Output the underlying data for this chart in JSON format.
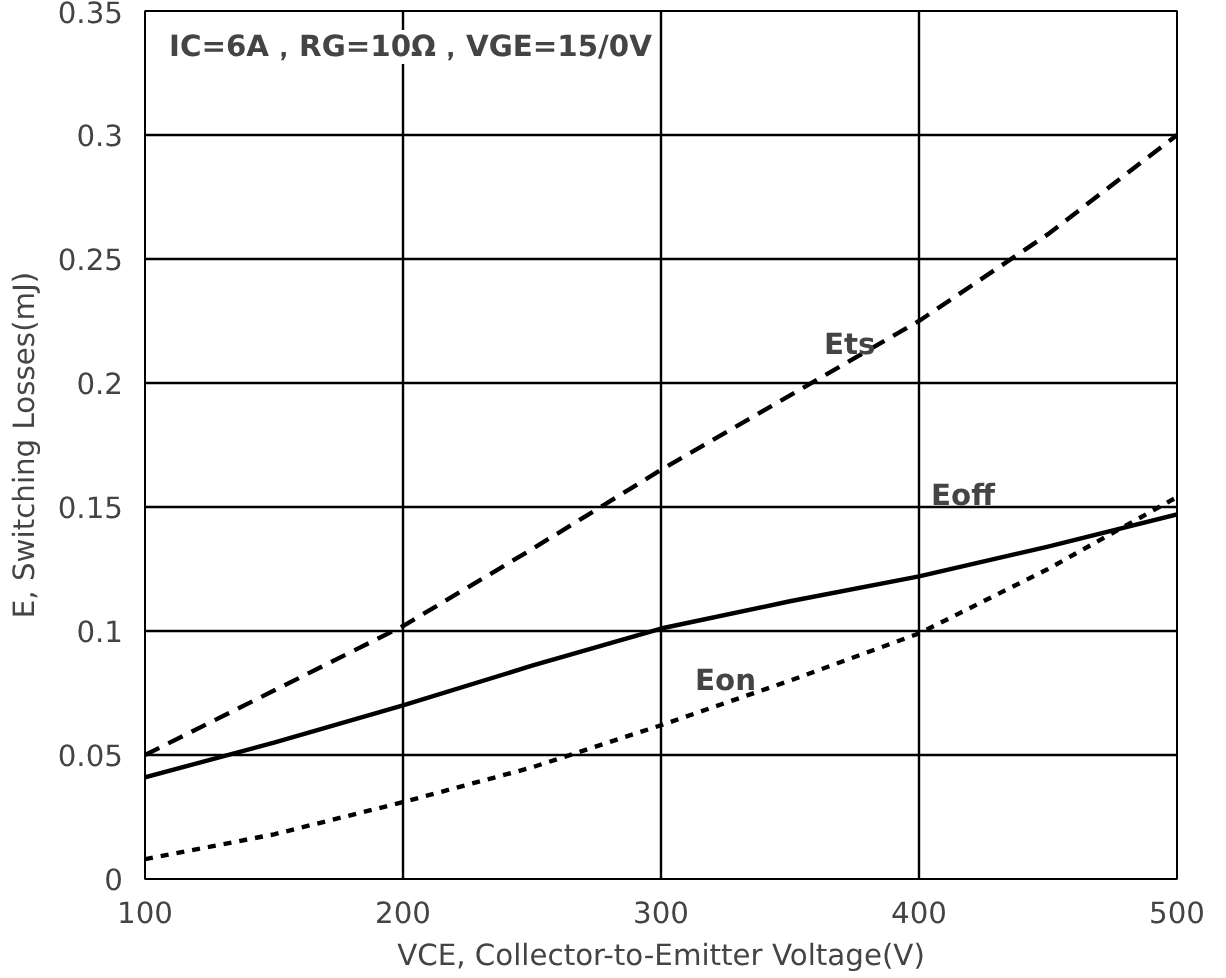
{
  "chart_data": {
    "type": "line",
    "xlabel": "VCE, Collector-to-Emitter Voltage(V)",
    "ylabel": "E, Switching Losses(mJ)",
    "xlim": [
      100,
      500
    ],
    "xticks": [
      100,
      200,
      300,
      400,
      500
    ],
    "ylim": [
      0,
      0.35
    ],
    "yticks": [
      0,
      0.05,
      0.1,
      0.15,
      0.2,
      0.25,
      0.3,
      0.35
    ],
    "grid": true,
    "marker": "none",
    "x": [
      100,
      150,
      200,
      250,
      300,
      350,
      400,
      450,
      500
    ],
    "series": [
      {
        "name": "Ets",
        "color": "#000000",
        "line_style": "dashed",
        "values": [
          0.05,
          0.076,
          0.102,
          0.133,
          0.165,
          0.195,
          0.225,
          0.26,
          0.3
        ]
      },
      {
        "name": "Eoff",
        "color": "#000000",
        "line_style": "solid",
        "values": [
          0.041,
          0.055,
          0.07,
          0.086,
          0.101,
          0.112,
          0.122,
          0.134,
          0.147
        ]
      },
      {
        "name": "Eon",
        "color": "#000000",
        "line_style": "dotted",
        "values": [
          0.008,
          0.018,
          0.031,
          0.045,
          0.062,
          0.08,
          0.099,
          0.125,
          0.154
        ]
      }
    ],
    "annotations": [
      "IC=6A，RG=10Ω，VGE=15/0V"
    ]
  }
}
